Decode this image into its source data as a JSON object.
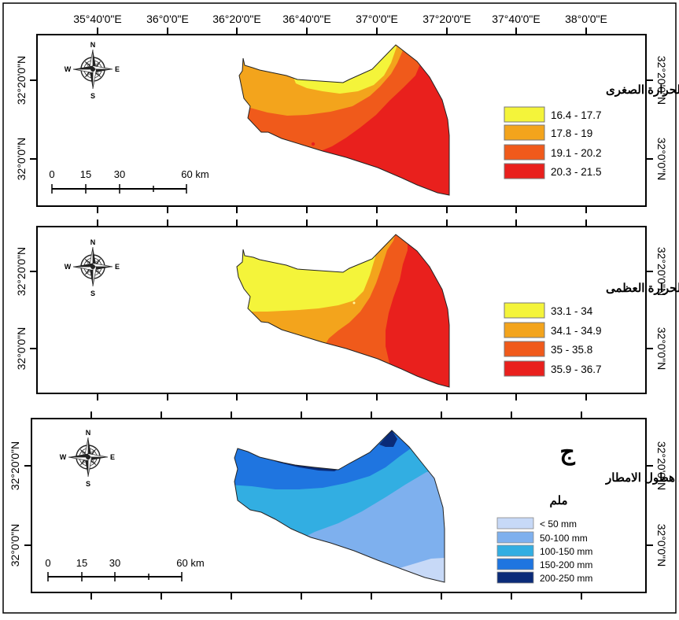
{
  "axes": {
    "lon_labels": [
      "35°40'0\"E",
      "36°0'0\"E",
      "36°20'0\"E",
      "36°40'0\"E",
      "37°0'0\"E",
      "37°20'0\"E",
      "37°40'0\"E",
      "38°0'0\"E"
    ],
    "lat_labels": [
      "32°20'0\"N",
      "32°0'0\"N"
    ]
  },
  "compass": {
    "n": "N",
    "s": "S",
    "e": "E",
    "w": "W"
  },
  "scale_bar": {
    "labels": [
      "0",
      "15",
      "30",
      "60 km"
    ]
  },
  "panels": [
    {
      "id": "min-temperature",
      "legend_title": "درجات الحرارة الصغرى",
      "classes": [
        {
          "label": "16.4 - 17.7",
          "color": "#f4f43a"
        },
        {
          "label": "17.8 - 19",
          "color": "#f3a41c"
        },
        {
          "label": "19.1 - 20.2",
          "color": "#f05a1b"
        },
        {
          "label": "20.3 - 21.5",
          "color": "#e9201d"
        }
      ]
    },
    {
      "id": "max-temperature",
      "legend_title": "درجات الحرارة العظمى",
      "classes": [
        {
          "label": "33.1 - 34",
          "color": "#f4f43a"
        },
        {
          "label": "34.1 - 34.9",
          "color": "#f3a41c"
        },
        {
          "label": "35 - 35.8",
          "color": "#f05a1b"
        },
        {
          "label": "35.9 - 36.7",
          "color": "#e9201d"
        }
      ]
    },
    {
      "id": "rainfall",
      "panel_letter": "ج",
      "legend_title": "معدل هطول الامطار",
      "legend_subtitle": "ملم",
      "classes": [
        {
          "label": "< 50 mm",
          "color": "#c7d9f7"
        },
        {
          "label": "50-100 mm",
          "color": "#7eb0ee"
        },
        {
          "label": "100-150 mm",
          "color": "#32aee2"
        },
        {
          "label": "150-200 mm",
          "color": "#1f75e0"
        },
        {
          "label": "200-250 mm",
          "color": "#0a2b78"
        }
      ]
    }
  ]
}
